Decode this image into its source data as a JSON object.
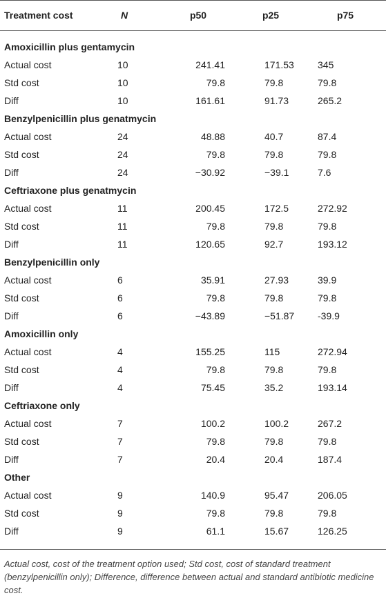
{
  "table": {
    "header": [
      "Treatment cost",
      "N",
      "p50",
      "p25",
      "p75"
    ],
    "groups": [
      {
        "title": "Amoxicillin plus gentamycin",
        "rows": [
          [
            "Actual cost",
            "10",
            "241.41",
            "171.53",
            "345"
          ],
          [
            "Std cost",
            "10",
            "79.8",
            "79.8",
            "79.8"
          ],
          [
            "Diff",
            "10",
            "161.61",
            "91.73",
            "265.2"
          ]
        ]
      },
      {
        "title": "Benzylpenicillin plus genatmycin",
        "rows": [
          [
            "Actual cost",
            "24",
            "48.88",
            "40.7",
            "87.4"
          ],
          [
            "Std cost",
            "24",
            "79.8",
            "79.8",
            "79.8"
          ],
          [
            "Diff",
            "24",
            "−30.92",
            "−39.1",
            "7.6"
          ]
        ]
      },
      {
        "title": "Ceftriaxone plus genatmycin",
        "rows": [
          [
            "Actual cost",
            "11",
            "200.45",
            "172.5",
            "272.92"
          ],
          [
            "Std cost",
            "11",
            "79.8",
            "79.8",
            "79.8"
          ],
          [
            "Diff",
            "11",
            "120.65",
            "92.7",
            "193.12"
          ]
        ]
      },
      {
        "title": "Benzylpenicillin only",
        "rows": [
          [
            "Actual cost",
            "6",
            "35.91",
            "27.93",
            "39.9"
          ],
          [
            "Std cost",
            "6",
            "79.8",
            "79.8",
            "79.8"
          ],
          [
            "Diff",
            "6",
            "−43.89",
            "−51.87",
            "-39.9"
          ]
        ]
      },
      {
        "title": "Amoxicillin only",
        "rows": [
          [
            "Actual cost",
            "4",
            "155.25",
            "115",
            "272.94"
          ],
          [
            "Std cost",
            "4",
            "79.8",
            "79.8",
            "79.8"
          ],
          [
            "Diff",
            "4",
            "75.45",
            "35.2",
            "193.14"
          ]
        ]
      },
      {
        "title": "Ceftriaxone only",
        "rows": [
          [
            "Actual cost",
            "7",
            "100.2",
            "100.2",
            "267.2"
          ],
          [
            "Std cost",
            "7",
            "79.8",
            "79.8",
            "79.8"
          ],
          [
            "Diff",
            "7",
            "20.4",
            "20.4",
            "187.4"
          ]
        ]
      },
      {
        "title": "Other",
        "rows": [
          [
            "Actual cost",
            "9",
            "140.9",
            "95.47",
            "206.05"
          ],
          [
            "Std cost",
            "9",
            "79.8",
            "79.8",
            "79.8"
          ],
          [
            "Diff",
            "9",
            "61.1",
            "15.67",
            "126.25"
          ]
        ]
      }
    ]
  },
  "footnote": "Actual cost, cost of the treatment option used; Std cost, cost of standard treatment (benzylpenicillin only); Difference, difference between actual and standard antibiotic medicine cost."
}
